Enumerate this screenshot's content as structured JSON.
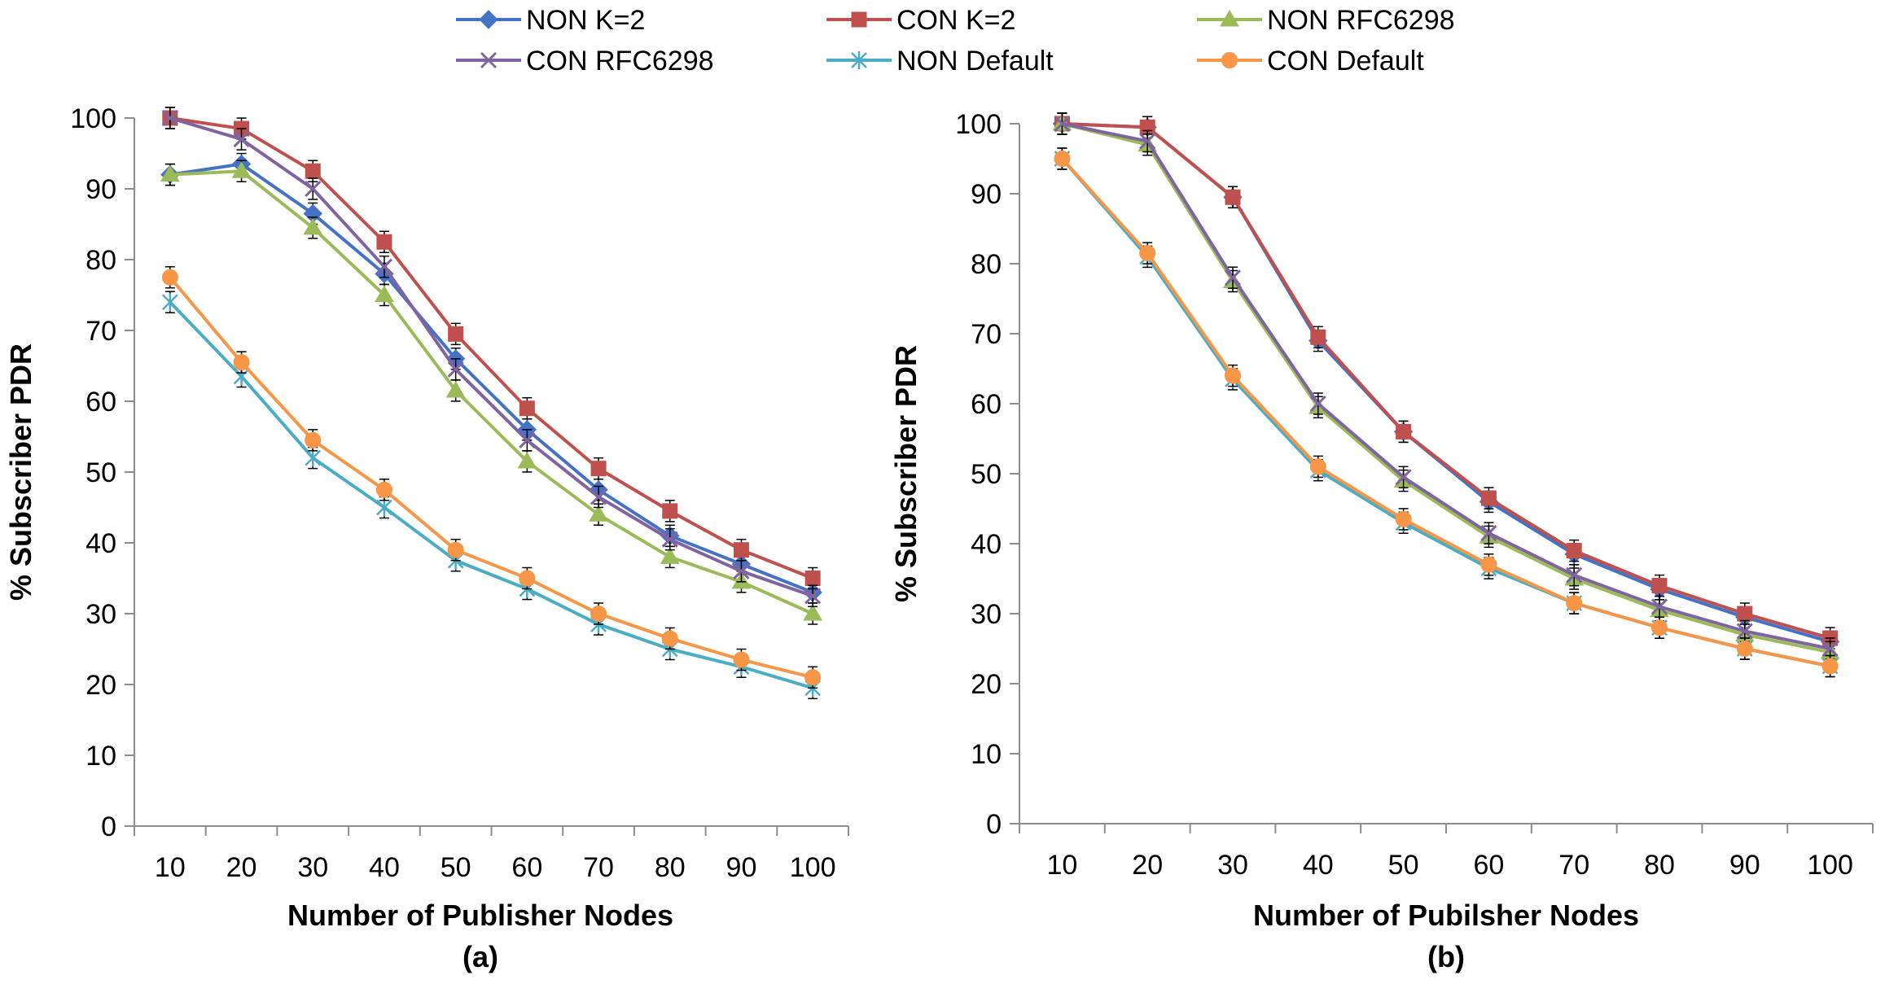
{
  "legend": {
    "entries": [
      {
        "label": "NON K=2",
        "color": "#4472C4",
        "marker": "diamond"
      },
      {
        "label": "CON K=2",
        "color": "#C0504D",
        "marker": "square"
      },
      {
        "label": "NON RFC6298",
        "color": "#9BBB59",
        "marker": "triangle"
      },
      {
        "label": "CON RFC6298",
        "color": "#8064A2",
        "marker": "x"
      },
      {
        "label": "NON Default",
        "color": "#4BACC6",
        "marker": "star"
      },
      {
        "label": "CON Default",
        "color": "#F79646",
        "marker": "circle"
      }
    ]
  },
  "chart_data": [
    {
      "type": "line",
      "caption": "(a)",
      "xlabel": "Number of Publisher Nodes",
      "ylabel": "% Subscriber PDR",
      "x": [
        10,
        20,
        30,
        40,
        50,
        60,
        70,
        80,
        90,
        100
      ],
      "x_tick_labels": [
        "10",
        "20",
        "30",
        "40",
        "50",
        "60",
        "70",
        "80",
        "90",
        "100"
      ],
      "ylim": [
        0,
        100
      ],
      "y_ticks": [
        0,
        10,
        20,
        30,
        40,
        50,
        60,
        70,
        80,
        90,
        100
      ],
      "y_tick_labels": [
        "0",
        "10",
        "20",
        "30",
        "40",
        "50",
        "60",
        "70",
        "80",
        "90",
        "100"
      ],
      "series": [
        {
          "name": "NON K=2",
          "values": [
            92,
            93.5,
            86.5,
            78,
            66,
            56,
            47.5,
            41,
            37,
            33
          ]
        },
        {
          "name": "CON K=2",
          "values": [
            100,
            98.5,
            92.5,
            82.5,
            69.5,
            59,
            50.5,
            44.5,
            39,
            35
          ]
        },
        {
          "name": "NON RFC6298",
          "values": [
            92,
            92.5,
            84.5,
            75,
            61.5,
            51.5,
            44,
            38,
            34.5,
            30
          ]
        },
        {
          "name": "CON RFC6298",
          "values": [
            100,
            97,
            90,
            79,
            64.5,
            54.5,
            46.5,
            40.5,
            36,
            32.5
          ]
        },
        {
          "name": "NON Default",
          "values": [
            74,
            63.5,
            52,
            45,
            37.5,
            33.5,
            28.5,
            25,
            22.5,
            19.5
          ]
        },
        {
          "name": "CON Default",
          "values": [
            77.5,
            65.5,
            54.5,
            47.5,
            39,
            35,
            30,
            26.5,
            23.5,
            21
          ]
        }
      ]
    },
    {
      "type": "line",
      "caption": "(b)",
      "xlabel": "Number of Pubilsher Nodes",
      "ylabel": "% Subscriber PDR",
      "x": [
        10,
        20,
        30,
        40,
        50,
        60,
        70,
        80,
        90,
        100
      ],
      "x_tick_labels": [
        "10",
        "20",
        "30",
        "40",
        "50",
        "60",
        "70",
        "80",
        "90",
        "100"
      ],
      "ylim": [
        0,
        100
      ],
      "y_ticks": [
        0,
        10,
        20,
        30,
        40,
        50,
        60,
        70,
        80,
        90,
        100
      ],
      "y_tick_labels": [
        "0",
        "10",
        "20",
        "30",
        "40",
        "50",
        "60",
        "70",
        "80",
        "90",
        "100"
      ],
      "series": [
        {
          "name": "NON K=2",
          "values": [
            100,
            99.5,
            89.5,
            69,
            56,
            46,
            38.5,
            33.5,
            29.5,
            26
          ]
        },
        {
          "name": "CON K=2",
          "values": [
            100,
            99.5,
            89.5,
            69.5,
            56,
            46.5,
            39,
            34,
            30,
            26.5
          ]
        },
        {
          "name": "NON RFC6298",
          "values": [
            100,
            97,
            77.5,
            59.5,
            49,
            41,
            35,
            30.5,
            27,
            24.5
          ]
        },
        {
          "name": "CON RFC6298",
          "values": [
            100,
            97.5,
            78,
            60,
            49.5,
            41.5,
            35.5,
            31,
            27.5,
            25
          ]
        },
        {
          "name": "NON Default",
          "values": [
            95,
            81,
            63.5,
            50.5,
            43,
            36.5,
            31.5,
            28,
            25,
            22.5
          ]
        },
        {
          "name": "CON Default",
          "values": [
            95,
            81.5,
            64,
            51,
            43.5,
            37,
            31.5,
            28,
            25,
            22.5
          ]
        }
      ]
    }
  ]
}
